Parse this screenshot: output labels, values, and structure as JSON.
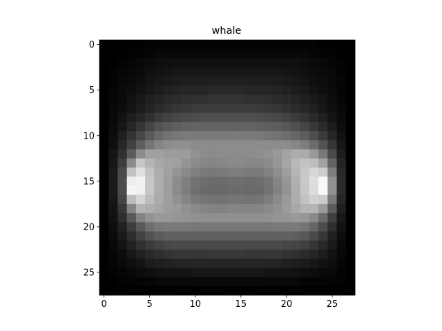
{
  "chart_data": {
    "type": "heatmap",
    "title": "whale",
    "xlabel": "",
    "ylabel": "",
    "colormap": "gray",
    "xlim": [
      -0.5,
      27.5
    ],
    "ylim": [
      27.5,
      -0.5
    ],
    "x_ticks": [
      "0",
      "5",
      "10",
      "15",
      "20",
      "25"
    ],
    "y_ticks": [
      "0",
      "5",
      "10",
      "15",
      "20",
      "25"
    ],
    "grid": false,
    "rows": 28,
    "cols": 28,
    "matrix_description": "28x28 grayscale intensity image (0=black, 1=white); values estimated from the rendered pixels",
    "values": [
      [
        0.0,
        0.0,
        0.0,
        0.0,
        0.0,
        0.01,
        0.01,
        0.01,
        0.01,
        0.01,
        0.01,
        0.01,
        0.01,
        0.01,
        0.01,
        0.01,
        0.01,
        0.01,
        0.01,
        0.01,
        0.01,
        0.01,
        0.01,
        0.01,
        0.0,
        0.0,
        0.0,
        0.0
      ],
      [
        0.0,
        0.0,
        0.0,
        0.01,
        0.01,
        0.02,
        0.03,
        0.03,
        0.03,
        0.03,
        0.03,
        0.03,
        0.03,
        0.03,
        0.03,
        0.03,
        0.03,
        0.03,
        0.03,
        0.03,
        0.03,
        0.03,
        0.03,
        0.02,
        0.01,
        0.01,
        0.0,
        0.0
      ],
      [
        0.0,
        0.0,
        0.01,
        0.02,
        0.03,
        0.04,
        0.05,
        0.06,
        0.06,
        0.06,
        0.06,
        0.06,
        0.06,
        0.06,
        0.06,
        0.06,
        0.06,
        0.06,
        0.06,
        0.06,
        0.06,
        0.06,
        0.05,
        0.04,
        0.03,
        0.02,
        0.01,
        0.0
      ],
      [
        0.0,
        0.01,
        0.02,
        0.03,
        0.04,
        0.06,
        0.07,
        0.08,
        0.09,
        0.09,
        0.09,
        0.09,
        0.09,
        0.09,
        0.09,
        0.09,
        0.09,
        0.09,
        0.09,
        0.09,
        0.08,
        0.07,
        0.06,
        0.05,
        0.04,
        0.03,
        0.01,
        0.0
      ],
      [
        0.0,
        0.01,
        0.03,
        0.04,
        0.06,
        0.08,
        0.09,
        0.1,
        0.11,
        0.12,
        0.12,
        0.12,
        0.12,
        0.12,
        0.12,
        0.12,
        0.12,
        0.12,
        0.12,
        0.11,
        0.1,
        0.09,
        0.08,
        0.06,
        0.05,
        0.03,
        0.02,
        0.0
      ],
      [
        0.0,
        0.02,
        0.04,
        0.05,
        0.07,
        0.09,
        0.11,
        0.13,
        0.14,
        0.15,
        0.15,
        0.15,
        0.16,
        0.16,
        0.16,
        0.16,
        0.15,
        0.15,
        0.15,
        0.14,
        0.13,
        0.11,
        0.1,
        0.08,
        0.06,
        0.04,
        0.02,
        0.0
      ],
      [
        0.0,
        0.02,
        0.04,
        0.07,
        0.09,
        0.12,
        0.14,
        0.16,
        0.17,
        0.18,
        0.19,
        0.19,
        0.2,
        0.2,
        0.2,
        0.2,
        0.19,
        0.19,
        0.18,
        0.17,
        0.16,
        0.14,
        0.12,
        0.1,
        0.08,
        0.05,
        0.02,
        0.0
      ],
      [
        0.0,
        0.03,
        0.05,
        0.08,
        0.11,
        0.14,
        0.17,
        0.19,
        0.21,
        0.22,
        0.23,
        0.24,
        0.24,
        0.24,
        0.24,
        0.24,
        0.24,
        0.23,
        0.22,
        0.21,
        0.19,
        0.17,
        0.15,
        0.12,
        0.09,
        0.06,
        0.03,
        0.0
      ],
      [
        0.0,
        0.03,
        0.07,
        0.11,
        0.15,
        0.19,
        0.23,
        0.26,
        0.28,
        0.29,
        0.3,
        0.31,
        0.31,
        0.31,
        0.31,
        0.31,
        0.31,
        0.3,
        0.29,
        0.28,
        0.26,
        0.23,
        0.2,
        0.16,
        0.12,
        0.08,
        0.04,
        0.0
      ],
      [
        0.0,
        0.04,
        0.09,
        0.15,
        0.21,
        0.27,
        0.32,
        0.35,
        0.37,
        0.38,
        0.39,
        0.39,
        0.39,
        0.39,
        0.39,
        0.39,
        0.39,
        0.38,
        0.37,
        0.36,
        0.34,
        0.31,
        0.27,
        0.22,
        0.17,
        0.11,
        0.05,
        0.0
      ],
      [
        0.0,
        0.05,
        0.12,
        0.2,
        0.28,
        0.35,
        0.41,
        0.45,
        0.47,
        0.48,
        0.48,
        0.48,
        0.48,
        0.48,
        0.48,
        0.48,
        0.48,
        0.47,
        0.46,
        0.45,
        0.43,
        0.4,
        0.36,
        0.3,
        0.23,
        0.15,
        0.07,
        0.0
      ],
      [
        0.0,
        0.06,
        0.15,
        0.26,
        0.37,
        0.46,
        0.52,
        0.55,
        0.56,
        0.56,
        0.55,
        0.55,
        0.55,
        0.55,
        0.55,
        0.55,
        0.55,
        0.55,
        0.55,
        0.55,
        0.55,
        0.53,
        0.49,
        0.42,
        0.32,
        0.21,
        0.09,
        0.0
      ],
      [
        0.0,
        0.08,
        0.19,
        0.36,
        0.55,
        0.63,
        0.63,
        0.61,
        0.61,
        0.61,
        0.57,
        0.55,
        0.54,
        0.55,
        0.55,
        0.55,
        0.55,
        0.56,
        0.57,
        0.6,
        0.64,
        0.68,
        0.67,
        0.6,
        0.47,
        0.29,
        0.11,
        0.0
      ],
      [
        0.0,
        0.09,
        0.24,
        0.55,
        0.78,
        0.71,
        0.66,
        0.64,
        0.63,
        0.58,
        0.55,
        0.53,
        0.52,
        0.53,
        0.54,
        0.54,
        0.53,
        0.53,
        0.55,
        0.59,
        0.65,
        0.72,
        0.76,
        0.74,
        0.63,
        0.39,
        0.14,
        0.0
      ],
      [
        0.0,
        0.1,
        0.29,
        0.76,
        0.88,
        0.76,
        0.68,
        0.63,
        0.58,
        0.54,
        0.5,
        0.48,
        0.47,
        0.48,
        0.49,
        0.49,
        0.48,
        0.48,
        0.51,
        0.56,
        0.62,
        0.71,
        0.79,
        0.84,
        0.8,
        0.49,
        0.16,
        0.0
      ],
      [
        0.0,
        0.1,
        0.3,
        0.93,
        0.95,
        0.78,
        0.68,
        0.62,
        0.55,
        0.5,
        0.45,
        0.43,
        0.42,
        0.42,
        0.43,
        0.43,
        0.42,
        0.43,
        0.46,
        0.52,
        0.59,
        0.69,
        0.79,
        0.87,
        0.97,
        0.57,
        0.17,
        0.0
      ],
      [
        0.0,
        0.1,
        0.3,
        0.96,
        0.94,
        0.78,
        0.68,
        0.62,
        0.55,
        0.49,
        0.44,
        0.42,
        0.41,
        0.41,
        0.42,
        0.42,
        0.41,
        0.42,
        0.45,
        0.51,
        0.58,
        0.68,
        0.78,
        0.86,
        0.98,
        0.57,
        0.17,
        0.0
      ],
      [
        0.0,
        0.09,
        0.27,
        0.74,
        0.83,
        0.74,
        0.67,
        0.62,
        0.57,
        0.52,
        0.48,
        0.46,
        0.45,
        0.45,
        0.46,
        0.46,
        0.45,
        0.46,
        0.49,
        0.54,
        0.6,
        0.68,
        0.76,
        0.82,
        0.8,
        0.48,
        0.15,
        0.0
      ],
      [
        0.0,
        0.08,
        0.22,
        0.52,
        0.7,
        0.68,
        0.65,
        0.62,
        0.6,
        0.57,
        0.54,
        0.52,
        0.51,
        0.51,
        0.52,
        0.52,
        0.52,
        0.52,
        0.54,
        0.57,
        0.61,
        0.66,
        0.7,
        0.71,
        0.61,
        0.36,
        0.12,
        0.0
      ],
      [
        0.0,
        0.07,
        0.18,
        0.35,
        0.51,
        0.58,
        0.6,
        0.6,
        0.59,
        0.58,
        0.57,
        0.56,
        0.56,
        0.56,
        0.56,
        0.56,
        0.56,
        0.56,
        0.57,
        0.58,
        0.59,
        0.6,
        0.59,
        0.54,
        0.42,
        0.25,
        0.09,
        0.0
      ],
      [
        0.0,
        0.05,
        0.13,
        0.24,
        0.35,
        0.43,
        0.47,
        0.48,
        0.48,
        0.48,
        0.47,
        0.47,
        0.47,
        0.47,
        0.47,
        0.47,
        0.47,
        0.47,
        0.47,
        0.48,
        0.48,
        0.48,
        0.46,
        0.4,
        0.3,
        0.18,
        0.07,
        0.0
      ],
      [
        0.0,
        0.04,
        0.1,
        0.18,
        0.26,
        0.32,
        0.36,
        0.38,
        0.38,
        0.38,
        0.38,
        0.38,
        0.38,
        0.38,
        0.38,
        0.38,
        0.38,
        0.38,
        0.38,
        0.38,
        0.38,
        0.37,
        0.34,
        0.29,
        0.22,
        0.13,
        0.05,
        0.0
      ],
      [
        0.0,
        0.03,
        0.08,
        0.13,
        0.19,
        0.23,
        0.26,
        0.28,
        0.29,
        0.29,
        0.29,
        0.29,
        0.29,
        0.29,
        0.29,
        0.29,
        0.29,
        0.29,
        0.29,
        0.29,
        0.28,
        0.27,
        0.25,
        0.21,
        0.16,
        0.1,
        0.04,
        0.0
      ],
      [
        0.0,
        0.02,
        0.05,
        0.09,
        0.13,
        0.16,
        0.18,
        0.2,
        0.21,
        0.21,
        0.21,
        0.21,
        0.22,
        0.22,
        0.22,
        0.22,
        0.21,
        0.21,
        0.21,
        0.21,
        0.2,
        0.19,
        0.17,
        0.15,
        0.11,
        0.07,
        0.03,
        0.0
      ],
      [
        0.0,
        0.02,
        0.04,
        0.06,
        0.08,
        0.11,
        0.12,
        0.13,
        0.14,
        0.14,
        0.15,
        0.15,
        0.15,
        0.15,
        0.15,
        0.15,
        0.15,
        0.15,
        0.14,
        0.14,
        0.13,
        0.12,
        0.11,
        0.09,
        0.07,
        0.05,
        0.02,
        0.0
      ],
      [
        0.0,
        0.01,
        0.02,
        0.03,
        0.05,
        0.06,
        0.07,
        0.08,
        0.08,
        0.08,
        0.09,
        0.09,
        0.09,
        0.09,
        0.09,
        0.09,
        0.09,
        0.09,
        0.08,
        0.08,
        0.08,
        0.07,
        0.06,
        0.05,
        0.04,
        0.03,
        0.01,
        0.0
      ],
      [
        0.0,
        0.0,
        0.01,
        0.01,
        0.02,
        0.02,
        0.03,
        0.03,
        0.03,
        0.03,
        0.04,
        0.04,
        0.04,
        0.04,
        0.04,
        0.04,
        0.04,
        0.04,
        0.03,
        0.03,
        0.03,
        0.03,
        0.02,
        0.02,
        0.02,
        0.01,
        0.01,
        0.0
      ],
      [
        0.0,
        0.0,
        0.0,
        0.0,
        0.0,
        0.0,
        0.0,
        0.0,
        0.0,
        0.0,
        0.0,
        0.0,
        0.0,
        0.0,
        0.0,
        0.0,
        0.0,
        0.0,
        0.0,
        0.0,
        0.0,
        0.0,
        0.0,
        0.0,
        0.0,
        0.0,
        0.0,
        0.0
      ]
    ]
  }
}
